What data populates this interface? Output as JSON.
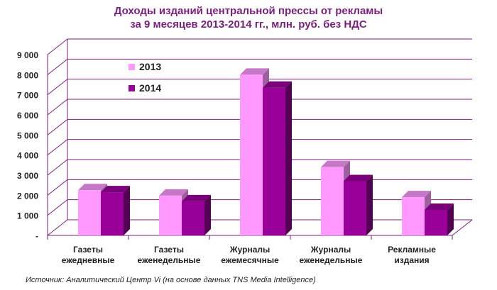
{
  "chart_data": {
    "type": "bar",
    "title": "Доходы изданий центральной прессы от рекламы",
    "subtitle": "за 9 месяцев 2013-2014 гг., млн. руб. без НДС",
    "categories": [
      [
        "Газеты",
        "ежедневные"
      ],
      [
        "Газеты",
        "еженедельные"
      ],
      [
        "Журналы",
        "ежемесячные"
      ],
      [
        "Журналы",
        "еженедельные"
      ],
      [
        "Рекламные",
        "издания"
      ]
    ],
    "series": [
      {
        "name": "2013",
        "color": "#ff99ff",
        "values": [
          2250,
          1980,
          8000,
          3400,
          1900
        ]
      },
      {
        "name": "2014",
        "color": "#990099",
        "values": [
          2150,
          1700,
          7350,
          2700,
          1270
        ]
      }
    ],
    "ylim": [
      0,
      9000
    ],
    "yticks": [
      "-",
      "1 000",
      "2 000",
      "3 000",
      "4 000",
      "5 000",
      "6 000",
      "7 000",
      "8 000",
      "9 000"
    ],
    "grid": true,
    "legend": "top-left",
    "source": "Источник: Аналитический Центр Vi (на основе данных TNS Media Intelligence)",
    "grid_color": "#7b1f7e"
  }
}
